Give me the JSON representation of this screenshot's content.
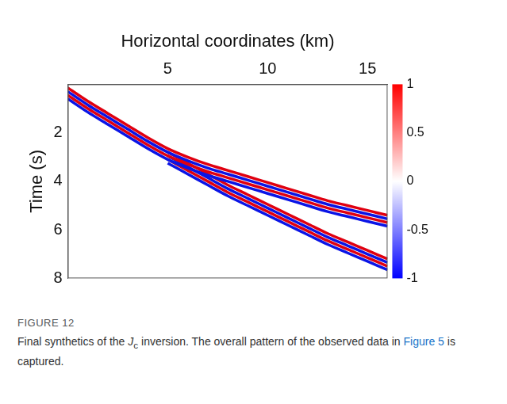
{
  "chart_data": {
    "type": "line",
    "x_label": "Horizontal coordinates (km)",
    "y_label": "Time (s)",
    "x": [
      0,
      1,
      2,
      3,
      4,
      5,
      6,
      7,
      8,
      9,
      10,
      11,
      12,
      13,
      14,
      15,
      16
    ],
    "series": [
      {
        "color": "#e00010",
        "values": [
          0.15,
          0.7,
          1.2,
          1.7,
          2.2,
          2.65,
          3.0,
          3.3,
          3.55,
          3.8,
          4.05,
          4.3,
          4.55,
          4.8,
          5.0,
          5.2,
          5.4
        ]
      },
      {
        "color": "#0a14e6",
        "values": [
          0.3,
          0.85,
          1.35,
          1.85,
          2.35,
          2.8,
          3.15,
          3.45,
          3.7,
          3.95,
          4.2,
          4.45,
          4.7,
          4.95,
          5.15,
          5.35,
          5.55
        ]
      },
      {
        "color": "#e00010",
        "values": [
          0.45,
          1.0,
          1.5,
          2.0,
          2.5,
          2.95,
          3.3,
          3.6,
          3.85,
          4.1,
          4.35,
          4.6,
          4.85,
          5.1,
          5.3,
          5.5,
          5.7
        ]
      },
      {
        "color": "#0a14e6",
        "values": [
          0.6,
          1.15,
          1.65,
          2.15,
          2.65,
          3.1,
          3.45,
          3.75,
          4.0,
          4.25,
          4.5,
          4.75,
          5.0,
          5.25,
          5.45,
          5.65,
          5.85
        ]
      },
      {
        "color": "#e00010",
        "values": [
          null,
          null,
          null,
          null,
          null,
          2.8,
          3.25,
          3.7,
          4.15,
          4.55,
          4.95,
          5.35,
          5.75,
          6.15,
          6.5,
          6.85,
          7.2
        ]
      },
      {
        "color": "#0a14e6",
        "values": [
          null,
          null,
          null,
          null,
          null,
          2.95,
          3.4,
          3.85,
          4.3,
          4.7,
          5.1,
          5.5,
          5.9,
          6.3,
          6.65,
          7.0,
          7.35
        ]
      },
      {
        "color": "#e00010",
        "values": [
          null,
          null,
          null,
          null,
          null,
          3.1,
          3.55,
          4.0,
          4.45,
          4.85,
          5.25,
          5.65,
          6.05,
          6.45,
          6.8,
          7.15,
          7.5
        ]
      },
      {
        "color": "#0a14e6",
        "values": [
          null,
          null,
          null,
          null,
          null,
          3.25,
          3.7,
          4.15,
          4.6,
          5.0,
          5.4,
          5.8,
          6.2,
          6.6,
          6.95,
          7.3,
          7.65
        ]
      }
    ],
    "xlim": [
      0,
      16
    ],
    "xticks": [
      5,
      10,
      15
    ],
    "ylim": [
      0,
      8
    ],
    "yticks": [
      2,
      4,
      6,
      8
    ],
    "colorbar": {
      "range": [
        -1,
        1
      ],
      "ticks": [
        -1,
        -0.5,
        0,
        0.5,
        1
      ],
      "colors": [
        "#0000ff",
        "#ffffff",
        "#ff0000"
      ]
    },
    "grid": false
  },
  "caption": {
    "label": "FIGURE 12",
    "text_before": "Final synthetics of the ",
    "symbol": "J",
    "subscript": "c",
    "text_middle": " inversion. The overall pattern of the observed data in ",
    "link": "Figure 5",
    "text_after": " is captured."
  }
}
